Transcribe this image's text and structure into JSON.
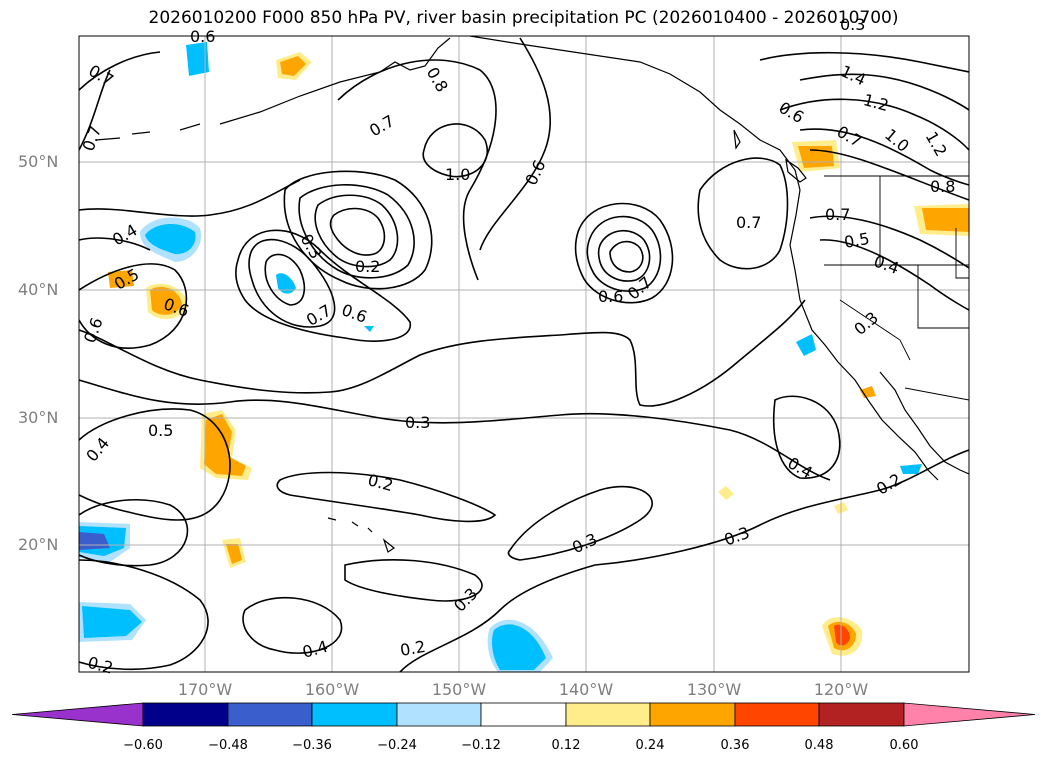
{
  "title": "2026010200 F000 850 hPa PV, river basin precipitation PC (2026010400 - 2026010700)",
  "map": {
    "lat_ticks": [
      "50°N",
      "40°N",
      "30°N",
      "20°N"
    ],
    "lon_ticks": [
      "170°W",
      "160°W",
      "150°W",
      "140°W",
      "130°W",
      "120°W"
    ],
    "contour_labels": [
      "0.6",
      "0.7",
      "0.7",
      "0.6",
      "0.4",
      "0.3",
      "0.2",
      "0.7",
      "0.6",
      "1.0",
      "0.7",
      "0.8",
      "0.6",
      "1.4",
      "1.2",
      "1.0",
      "1.2",
      "0.6",
      "0.7",
      "0.8",
      "0.7",
      "0.7",
      "0.5",
      "0.4",
      "0.3",
      "0.6",
      "0.7",
      "0.5",
      "0.6",
      "0.4",
      "0.5",
      "0.4",
      "0.3",
      "0.2",
      "0.3",
      "0.3",
      "0.3",
      "0.4",
      "0.2",
      "0.2",
      "0.2",
      "0.3"
    ]
  },
  "colorbar": {
    "ticks": [
      "−0.60",
      "−0.48",
      "−0.36",
      "−0.24",
      "−0.12",
      "0.12",
      "0.24",
      "0.36",
      "0.48",
      "0.60"
    ],
    "colors": [
      "#9932cc",
      "#00008b",
      "#3a5fcd",
      "#00bfff",
      "#b0e2ff",
      "#ffffff",
      "#ffec8b",
      "#ffa500",
      "#ff4500",
      "#b22222",
      "#ff82ab"
    ]
  },
  "legend_colors": {
    "neg_dark": "#3a5fcd",
    "neg_mid": "#00bfff",
    "neg_light": "#b0e2ff",
    "pos_light": "#ffec8b",
    "pos_mid": "#ffa500",
    "pos_dark": "#ff4500"
  }
}
